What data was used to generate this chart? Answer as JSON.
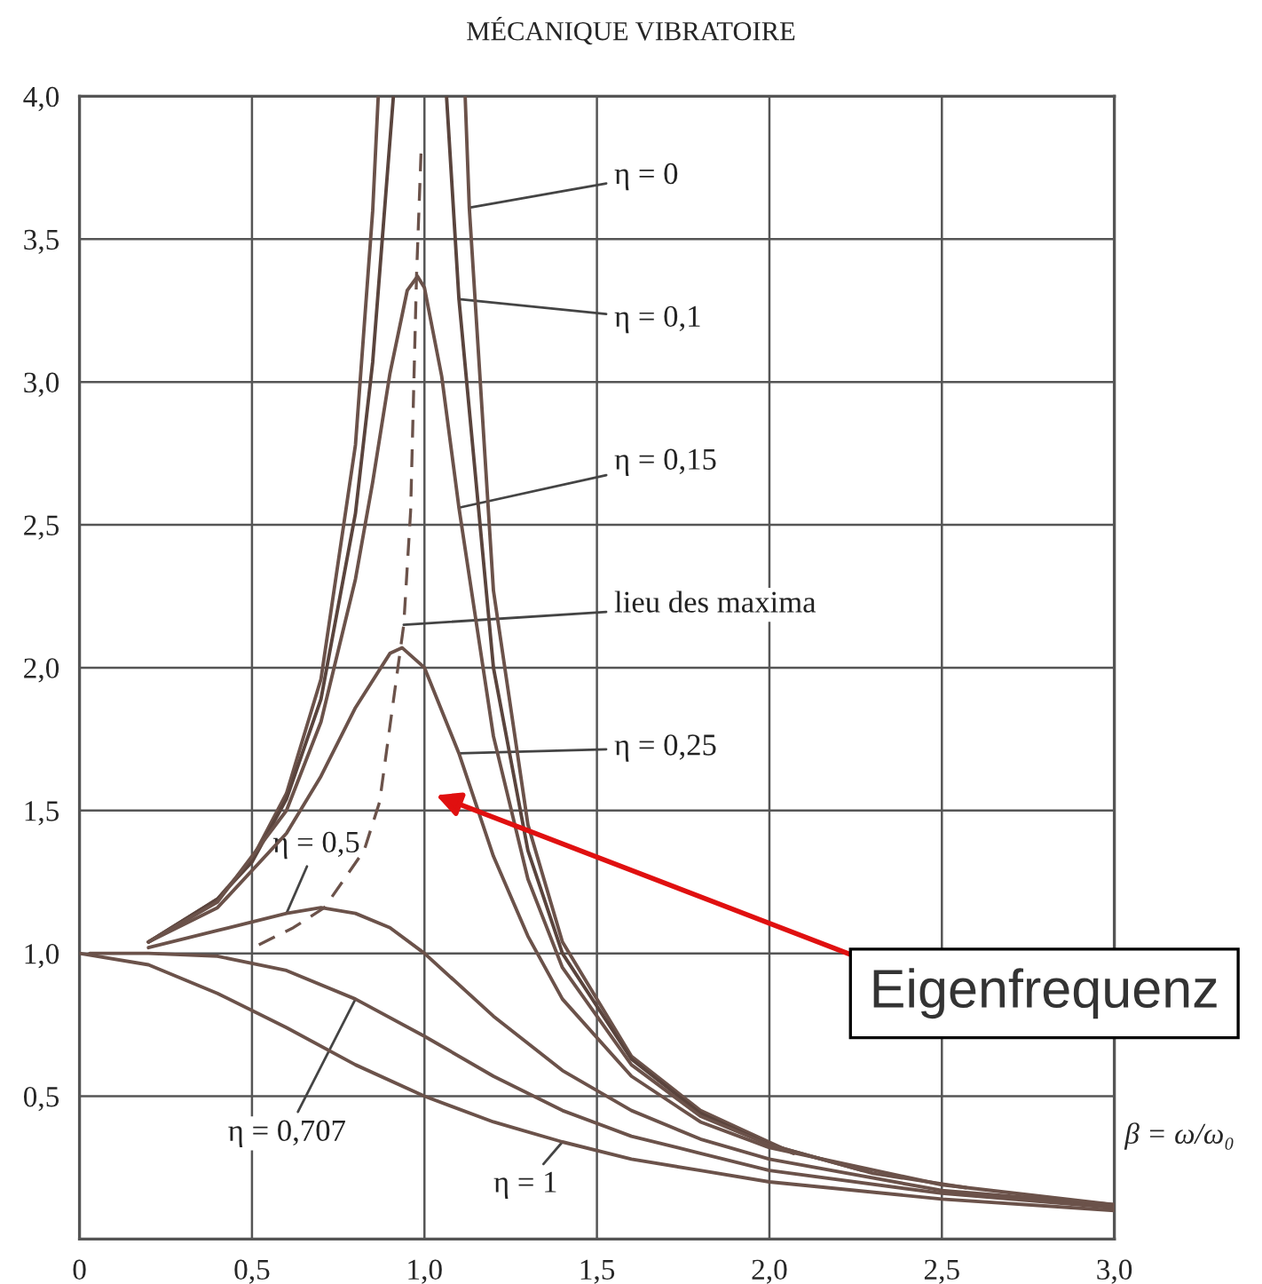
{
  "chart_data": {
    "type": "line",
    "title": "MÉCANIQUE VIBRATOIRE",
    "xlabel": "β = ω/ω₀",
    "xlim": [
      0,
      3.0
    ],
    "ylim": [
      0,
      4.0
    ],
    "xticks": [
      0,
      {
        "value": 0.5,
        "label": "0,5"
      },
      {
        "value": 1.0,
        "label": "1,0"
      },
      {
        "value": 1.5,
        "label": "1,5"
      },
      {
        "value": 2.0,
        "label": "2,0"
      },
      {
        "value": 2.5,
        "label": "2,5"
      },
      {
        "value": 3.0,
        "label": "3,0"
      }
    ],
    "yticks": [
      {
        "value": 0.5,
        "label": "0,5"
      },
      {
        "value": 1.0,
        "label": "1,0"
      },
      {
        "value": 1.5,
        "label": "1,5"
      },
      {
        "value": 2.0,
        "label": "2,0"
      },
      {
        "value": 2.5,
        "label": "2,5"
      },
      {
        "value": 3.0,
        "label": "3,0"
      },
      {
        "value": 3.5,
        "label": "3,5"
      },
      {
        "value": 4.0,
        "label": "4,0"
      }
    ],
    "grid": true,
    "marker": "none",
    "series": [
      {
        "color": "#6b524a",
        "x": [
          0.2,
          0.4,
          0.5,
          0.6,
          0.7,
          0.8,
          0.85,
          0.866,
          1.0,
          1.118,
          1.13,
          1.2,
          1.3,
          1.4,
          1.6,
          1.8,
          2.07
        ],
        "values": [
          1.04,
          1.19,
          1.33,
          1.56,
          1.96,
          2.78,
          3.6,
          4.0,
          null,
          4.0,
          3.61,
          2.27,
          1.45,
          1.04,
          0.64,
          0.45,
          0.3
        ]
      },
      {
        "color": "#5a443d",
        "x": [
          0.2,
          0.4,
          0.5,
          0.6,
          0.7,
          0.8,
          0.85,
          0.91,
          1.0,
          1.064,
          1.1,
          1.2,
          1.3,
          1.4,
          1.6,
          1.8,
          2.0,
          2.27
        ],
        "values": [
          1.04,
          1.19,
          1.32,
          1.54,
          1.89,
          2.54,
          3.07,
          4.0,
          null,
          4.0,
          3.29,
          2.0,
          1.36,
          1.0,
          0.63,
          0.44,
          0.33,
          0.24
        ]
      },
      {
        "color": "#6b524a",
        "x": [
          0.2,
          0.4,
          0.6,
          0.7,
          0.8,
          0.85,
          0.9,
          0.95,
          0.98,
          1.0,
          1.05,
          1.1,
          1.2,
          1.3,
          1.4,
          1.6,
          1.8,
          2.0,
          2.3,
          2.57
        ],
        "values": [
          1.04,
          1.18,
          1.5,
          1.81,
          2.31,
          2.65,
          3.03,
          3.32,
          3.37,
          3.33,
          3.02,
          2.56,
          1.76,
          1.26,
          0.95,
          0.61,
          0.43,
          0.33,
          0.23,
          0.18
        ]
      },
      {
        "color": "#6b524a",
        "x": [
          0.2,
          0.4,
          0.6,
          0.7,
          0.8,
          0.9,
          0.935,
          1.0,
          1.1,
          1.2,
          1.3,
          1.4,
          1.6,
          1.8,
          2.0,
          2.5,
          3.0
        ],
        "values": [
          1.04,
          1.16,
          1.42,
          1.62,
          1.86,
          2.05,
          2.07,
          2.0,
          1.7,
          1.34,
          1.06,
          0.84,
          0.57,
          0.41,
          0.32,
          0.19,
          0.12
        ]
      },
      {
        "color": "#6b524a",
        "x": [
          0.2,
          0.4,
          0.6,
          0.7,
          0.8,
          0.9,
          1.0,
          1.2,
          1.4,
          1.6,
          1.8,
          2.0,
          2.5,
          3.0
        ],
        "values": [
          1.02,
          1.08,
          1.14,
          1.16,
          1.14,
          1.09,
          1.0,
          0.78,
          0.59,
          0.45,
          0.35,
          0.28,
          0.17,
          0.12
        ]
      },
      {
        "color": "#6b524a",
        "x": [
          0.03,
          0.2,
          0.4,
          0.6,
          0.8,
          1.0,
          1.2,
          1.4,
          1.6,
          1.8,
          2.0,
          2.5,
          3.0
        ],
        "values": [
          1.0,
          1.0,
          0.99,
          0.94,
          0.84,
          0.71,
          0.57,
          0.45,
          0.36,
          0.3,
          0.24,
          0.16,
          0.11
        ]
      },
      {
        "color": "#6b524a",
        "x": [
          0,
          0.2,
          0.4,
          0.6,
          0.8,
          1.0,
          1.2,
          1.4,
          1.6,
          1.8,
          2.0,
          2.5,
          3.0
        ],
        "values": [
          1.0,
          0.96,
          0.86,
          0.74,
          0.61,
          0.5,
          0.41,
          0.34,
          0.28,
          0.24,
          0.2,
          0.14,
          0.1
        ]
      },
      {
        "color": "#6b524a",
        "line_style": "dashed",
        "x": [
          0.52,
          0.62,
          0.71,
          0.825,
          0.87,
          0.94,
          0.96,
          0.977,
          0.99
        ],
        "values": [
          1.03,
          1.09,
          1.16,
          1.36,
          1.53,
          2.15,
          2.55,
          3.37,
          3.8
        ]
      }
    ],
    "annotations": [
      {
        "text": "η = 0",
        "x": 1.13,
        "y": 3.61
      },
      {
        "text": "η = 0,1",
        "x": 1.1,
        "y": 3.29
      },
      {
        "text": "η = 0,15",
        "x": 1.1,
        "y": 2.56
      },
      {
        "text": "lieu des maxima",
        "x": 0.94,
        "y": 2.15
      },
      {
        "text": "η = 0,25",
        "x": 1.1,
        "y": 1.7
      },
      {
        "text": "η = 0,5",
        "x": 0.6,
        "y": 1.14
      },
      {
        "text": "η = 0,707",
        "x": 0.8,
        "y": 0.84
      },
      {
        "text": "η = 1",
        "x": 1.4,
        "y": 0.34
      },
      "Eigenfrequenz"
    ]
  }
}
